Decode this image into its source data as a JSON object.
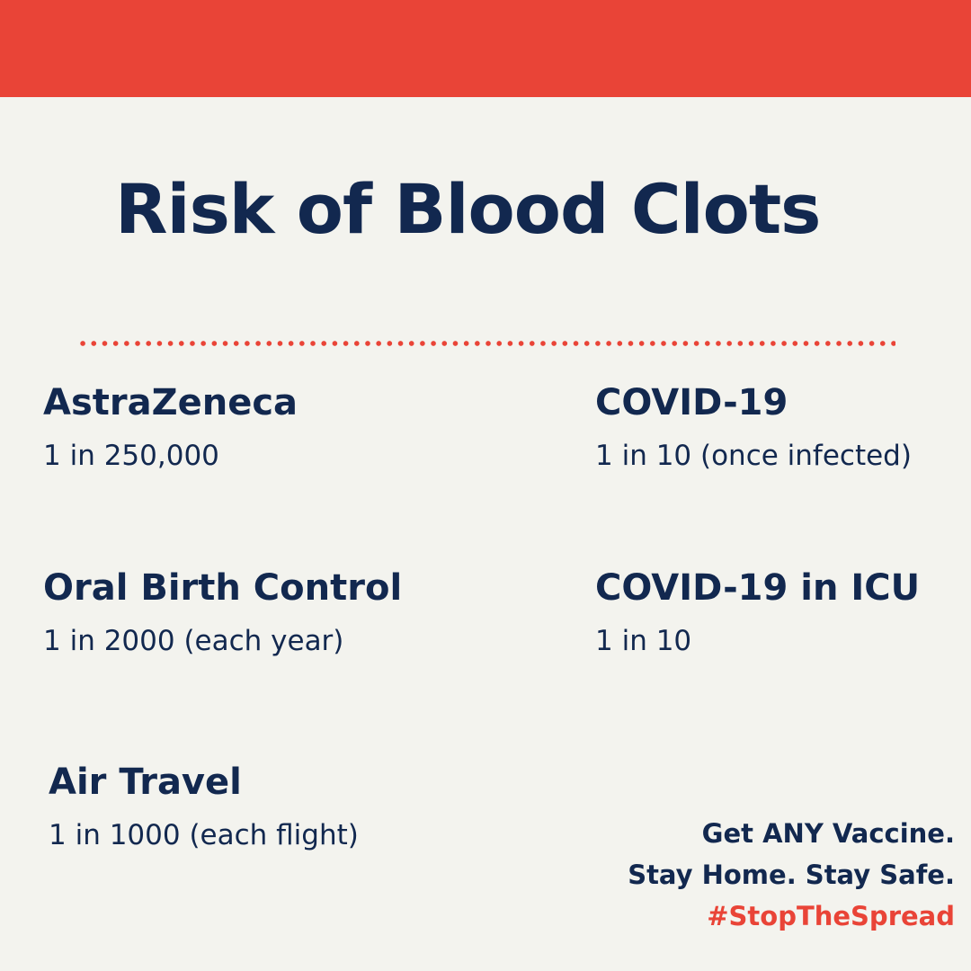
{
  "title": "Risk of Blood Clots",
  "items": [
    {
      "name": "AstraZeneca",
      "risk": "1 in 250,000"
    },
    {
      "name": "COVID-19",
      "risk": "1 in 10 (once infected)"
    },
    {
      "name": "Oral Birth Control",
      "risk": "1 in 2000  (each year)"
    },
    {
      "name": "COVID-19 in ICU",
      "risk": "1 in 10"
    },
    {
      "name": "Air Travel",
      "risk": "1 in 1000 (each flight)"
    }
  ],
  "footer": {
    "lines": [
      "Get ANY Vaccine.",
      "Stay Home. Stay Safe."
    ],
    "hashtag": "#StopTheSpread"
  }
}
